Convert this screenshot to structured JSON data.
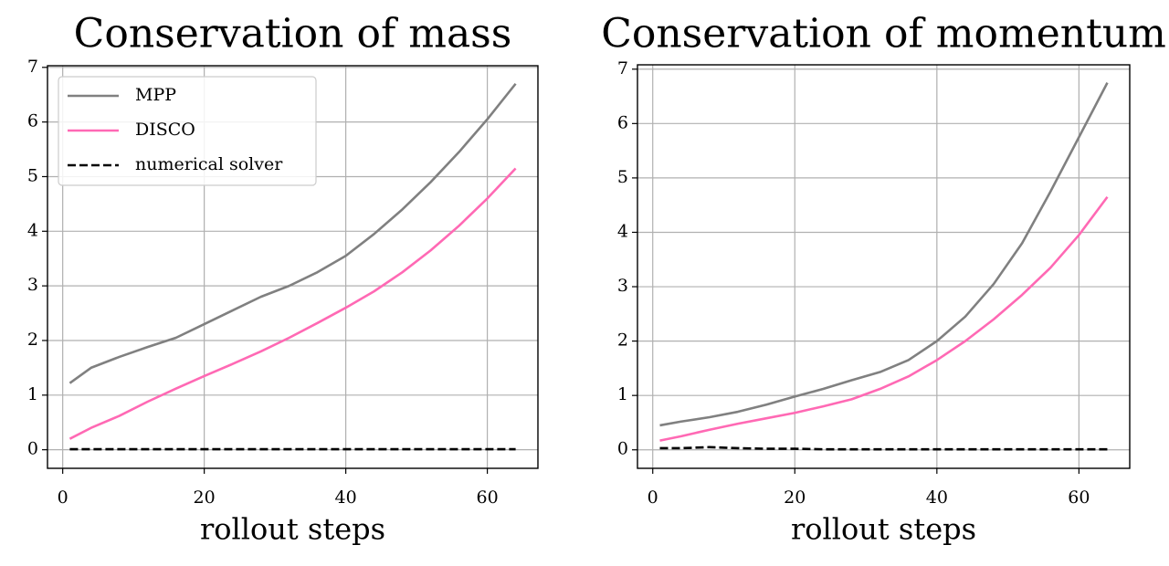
{
  "chart_data": [
    {
      "type": "line",
      "title": "Conservation of mass",
      "x_label": "rollout steps",
      "x": [
        1,
        4,
        8,
        12,
        16,
        20,
        24,
        28,
        32,
        36,
        40,
        44,
        48,
        52,
        56,
        60,
        64
      ],
      "series": [
        {
          "name": "MPP",
          "color": "#808080",
          "dashed": false,
          "values": [
            1.22,
            1.5,
            1.7,
            1.88,
            2.05,
            2.3,
            2.55,
            2.8,
            3.0,
            3.25,
            3.55,
            3.95,
            4.4,
            4.9,
            5.45,
            6.05,
            6.7
          ]
        },
        {
          "name": "DISCO",
          "color": "#ff69b4",
          "dashed": false,
          "values": [
            0.2,
            0.4,
            0.62,
            0.88,
            1.12,
            1.35,
            1.57,
            1.8,
            2.05,
            2.32,
            2.6,
            2.9,
            3.25,
            3.65,
            4.1,
            4.6,
            5.15
          ]
        },
        {
          "name": "numerical solver",
          "color": "#000000",
          "dashed": true,
          "values": [
            0.01,
            0.01,
            0.01,
            0.01,
            0.01,
            0.01,
            0.01,
            0.01,
            0.01,
            0.01,
            0.01,
            0.01,
            0.01,
            0.01,
            0.01,
            0.01,
            0.01
          ]
        }
      ],
      "xlim": [
        -2.15,
        67.15
      ],
      "xticks": [
        0,
        20,
        40,
        60
      ],
      "ylim": [
        -0.34,
        7.03
      ],
      "yticks": [
        0,
        1,
        2,
        3,
        4,
        5,
        6,
        7
      ],
      "grid": true,
      "legend": "upper left"
    },
    {
      "type": "line",
      "title": "Conservation of momentum",
      "x_label": "rollout steps",
      "x": [
        1,
        4,
        8,
        12,
        16,
        20,
        24,
        28,
        32,
        36,
        40,
        44,
        48,
        52,
        56,
        60,
        64
      ],
      "series": [
        {
          "color": "#808080",
          "dashed": false,
          "values": [
            0.45,
            0.52,
            0.6,
            0.7,
            0.83,
            0.98,
            1.12,
            1.28,
            1.43,
            1.65,
            2.0,
            2.45,
            3.05,
            3.8,
            4.75,
            5.75,
            6.75
          ]
        },
        {
          "color": "#ff69b4",
          "dashed": false,
          "values": [
            0.17,
            0.25,
            0.37,
            0.48,
            0.58,
            0.68,
            0.8,
            0.93,
            1.12,
            1.35,
            1.65,
            2.0,
            2.4,
            2.85,
            3.35,
            3.95,
            4.65
          ]
        },
        {
          "color": "#000000",
          "dashed": true,
          "values": [
            0.03,
            0.03,
            0.05,
            0.03,
            0.02,
            0.02,
            0.01,
            0.01,
            0.01,
            0.01,
            0.01,
            0.01,
            0.01,
            0.01,
            0.01,
            0.01,
            0.01
          ]
        }
      ],
      "xlim": [
        -2.15,
        67.15
      ],
      "xticks": [
        0,
        20,
        40,
        60
      ],
      "ylim": [
        -0.34,
        7.08
      ],
      "yticks": [
        0,
        1,
        2,
        3,
        4,
        5,
        6,
        7
      ],
      "grid": true
    }
  ]
}
